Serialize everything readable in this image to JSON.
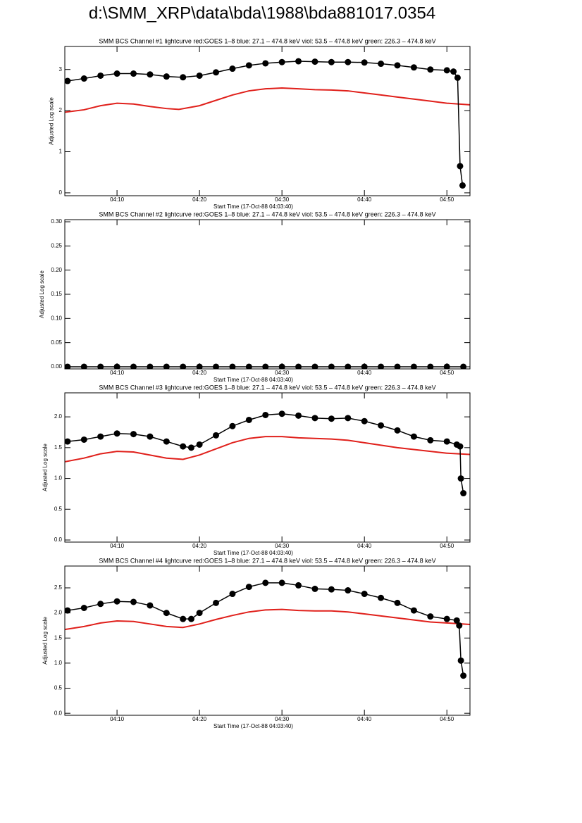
{
  "title": "d:\\SMM_XRP\\data\\bda\\1988\\bda881017.0354",
  "chart_data": [
    {
      "type": "line",
      "title": "SMM BCS Channel #1 lightcurve  red:GOES 1–8  blue: 27.1 – 474.8 keV  viol: 53.5 – 474.8 keV  green: 226.3 – 474.8 keV",
      "xlabel": "Start Time (17-Oct-88 04:03:40)",
      "ylabel": "Adjusted Log scale",
      "xlim": [
        243.67,
        292.8
      ],
      "xticks": [
        {
          "value": 250,
          "label": "04:10"
        },
        {
          "value": 260,
          "label": "04:20"
        },
        {
          "value": 270,
          "label": "04:30"
        },
        {
          "value": 280,
          "label": "04:40"
        },
        {
          "value": 290,
          "label": "04:50"
        }
      ],
      "ylim": [
        -0.07,
        3.56
      ],
      "yticks": [
        0,
        1,
        2,
        3
      ],
      "series": [
        {
          "color": "#000000",
          "marker": "circle",
          "x": [
            244,
            246,
            248,
            250,
            252,
            254,
            256,
            258,
            260,
            262,
            264,
            266,
            268,
            270,
            272,
            274,
            276,
            278,
            280,
            282,
            284,
            286,
            288,
            290,
            290.8,
            291.3,
            291.6,
            291.9
          ],
          "values": [
            2.72,
            2.78,
            2.85,
            2.9,
            2.9,
            2.88,
            2.83,
            2.81,
            2.85,
            2.93,
            3.02,
            3.1,
            3.15,
            3.18,
            3.2,
            3.19,
            3.18,
            3.18,
            3.17,
            3.14,
            3.1,
            3.05,
            3.0,
            2.98,
            2.95,
            2.8,
            0.65,
            0.18
          ]
        },
        {
          "color": "#e0201b",
          "marker": "none",
          "x": [
            243.67,
            246,
            248,
            250,
            252,
            254,
            256,
            257.5,
            260,
            262,
            264,
            266,
            268,
            270,
            272,
            274,
            276,
            278,
            280,
            282,
            284,
            286,
            288,
            290,
            292.8
          ],
          "values": [
            1.96,
            2.02,
            2.12,
            2.18,
            2.16,
            2.1,
            2.05,
            2.03,
            2.12,
            2.25,
            2.38,
            2.48,
            2.53,
            2.55,
            2.53,
            2.51,
            2.5,
            2.48,
            2.43,
            2.38,
            2.33,
            2.28,
            2.23,
            2.18,
            2.14
          ]
        }
      ]
    },
    {
      "type": "line",
      "title": "SMM BCS Channel #2 lightcurve  red:GOES 1–8  blue: 27.1 – 474.8 keV  viol: 53.5 – 474.8 keV  green: 226.3 – 474.8 keV",
      "xlabel": "Start Time (17-Oct-88 04:03:40)",
      "ylabel": "Adjusted Log scale",
      "xlim": [
        243.67,
        292.8
      ],
      "xticks": [
        {
          "value": 250,
          "label": "04:10"
        },
        {
          "value": 260,
          "label": "04:20"
        },
        {
          "value": 270,
          "label": "04:30"
        },
        {
          "value": 280,
          "label": "04:40"
        },
        {
          "value": 290,
          "label": "04:50"
        }
      ],
      "ylim": [
        -0.0044,
        0.3044
      ],
      "yticks": [
        {
          "value": 0,
          "label": "0.00"
        },
        0.05,
        {
          "value": 0.1,
          "label": "0.10"
        },
        0.15,
        {
          "value": 0.2,
          "label": "0.20"
        },
        0.25,
        {
          "value": 0.3,
          "label": "0.30"
        }
      ],
      "series": [
        {
          "color": "#000000",
          "marker": "circle",
          "x": [
            244,
            246,
            248,
            250,
            252,
            254,
            256,
            258,
            260,
            262,
            264,
            266,
            268,
            270,
            272,
            274,
            276,
            278,
            280,
            282,
            284,
            286,
            288,
            290,
            292
          ],
          "values": [
            0,
            0,
            0,
            0,
            0,
            0,
            0,
            0,
            0,
            0,
            0,
            0,
            0,
            0,
            0,
            0,
            0,
            0,
            0,
            0,
            0,
            0,
            0,
            0,
            0
          ]
        }
      ]
    },
    {
      "type": "line",
      "title": "SMM BCS Channel #3 lightcurve  red:GOES 1–8  blue: 27.1 – 474.8 keV  viol: 53.5 – 474.8 keV  green: 226.3 – 474.8 keV",
      "xlabel": "Start Time (17-Oct-88 04:03:40)",
      "ylabel": "Adjusted Log scale",
      "xlim": [
        243.67,
        292.8
      ],
      "xticks": [
        {
          "value": 250,
          "label": "04:10"
        },
        {
          "value": 260,
          "label": "04:20"
        },
        {
          "value": 270,
          "label": "04:30"
        },
        {
          "value": 280,
          "label": "04:40"
        },
        {
          "value": 290,
          "label": "04:50"
        }
      ],
      "ylim": [
        -0.034,
        2.39
      ],
      "yticks": [
        {
          "value": 0,
          "label": "0.0"
        },
        0.5,
        {
          "value": 1,
          "label": "1.0"
        },
        1.5,
        {
          "value": 2,
          "label": "2.0"
        }
      ],
      "series": [
        {
          "color": "#000000",
          "marker": "circle",
          "x": [
            244,
            246,
            248,
            250,
            252,
            254,
            256,
            258,
            259,
            260,
            262,
            264,
            266,
            268,
            270,
            272,
            274,
            276,
            278,
            280,
            282,
            284,
            286,
            288,
            290,
            291.2,
            291.6,
            291.7,
            292.0
          ],
          "values": [
            1.6,
            1.63,
            1.68,
            1.73,
            1.72,
            1.68,
            1.6,
            1.52,
            1.5,
            1.55,
            1.7,
            1.85,
            1.95,
            2.03,
            2.05,
            2.02,
            1.98,
            1.97,
            1.98,
            1.93,
            1.86,
            1.78,
            1.68,
            1.62,
            1.6,
            1.55,
            1.52,
            1.0,
            0.76
          ]
        },
        {
          "color": "#e0201b",
          "marker": "none",
          "x": [
            243.67,
            246,
            248,
            250,
            252,
            254,
            256,
            258,
            260,
            262,
            264,
            266,
            268,
            270,
            272,
            274,
            276,
            278,
            280,
            282,
            284,
            286,
            288,
            290,
            292.8
          ],
          "values": [
            1.27,
            1.33,
            1.4,
            1.44,
            1.43,
            1.38,
            1.33,
            1.31,
            1.38,
            1.48,
            1.58,
            1.65,
            1.68,
            1.68,
            1.66,
            1.65,
            1.64,
            1.62,
            1.58,
            1.54,
            1.5,
            1.47,
            1.44,
            1.41,
            1.39
          ]
        }
      ]
    },
    {
      "type": "line",
      "title": "SMM BCS Channel #4 lightcurve  red:GOES 1–8  blue: 27.1 – 474.8 keV  viol: 53.5 – 474.8 keV  green: 226.3 – 474.8 keV",
      "xlabel": "Start Time (17-Oct-88 04:03:40)",
      "ylabel": "Adjusted Log scale",
      "xlim": [
        243.67,
        292.8
      ],
      "xticks": [
        {
          "value": 250,
          "label": "04:10"
        },
        {
          "value": 260,
          "label": "04:20"
        },
        {
          "value": 270,
          "label": "04:30"
        },
        {
          "value": 280,
          "label": "04:40"
        },
        {
          "value": 290,
          "label": "04:50"
        }
      ],
      "ylim": [
        -0.04,
        2.935
      ],
      "yticks": [
        {
          "value": 0,
          "label": "0.0"
        },
        0.5,
        {
          "value": 1,
          "label": "1.0"
        },
        1.5,
        {
          "value": 2,
          "label": "2.0"
        },
        2.5
      ],
      "series": [
        {
          "color": "#000000",
          "marker": "circle",
          "x": [
            244,
            246,
            248,
            250,
            252,
            254,
            256,
            258,
            259,
            260,
            262,
            264,
            266,
            268,
            270,
            272,
            274,
            276,
            278,
            280,
            282,
            284,
            286,
            288,
            290,
            291.2,
            291.5,
            291.7,
            292.0
          ],
          "values": [
            2.05,
            2.1,
            2.18,
            2.23,
            2.22,
            2.15,
            2.0,
            1.88,
            1.88,
            2.0,
            2.2,
            2.38,
            2.52,
            2.6,
            2.6,
            2.55,
            2.48,
            2.47,
            2.45,
            2.38,
            2.3,
            2.2,
            2.05,
            1.93,
            1.88,
            1.85,
            1.75,
            1.05,
            0.75
          ]
        },
        {
          "color": "#e0201b",
          "marker": "none",
          "x": [
            243.67,
            246,
            248,
            250,
            252,
            254,
            256,
            258,
            260,
            262,
            264,
            266,
            268,
            270,
            272,
            274,
            276,
            278,
            280,
            282,
            284,
            286,
            288,
            290,
            292.8
          ],
          "values": [
            1.67,
            1.73,
            1.8,
            1.84,
            1.83,
            1.78,
            1.73,
            1.71,
            1.78,
            1.87,
            1.95,
            2.02,
            2.06,
            2.07,
            2.05,
            2.04,
            2.04,
            2.02,
            1.98,
            1.94,
            1.9,
            1.86,
            1.82,
            1.8,
            1.77
          ]
        }
      ]
    }
  ]
}
